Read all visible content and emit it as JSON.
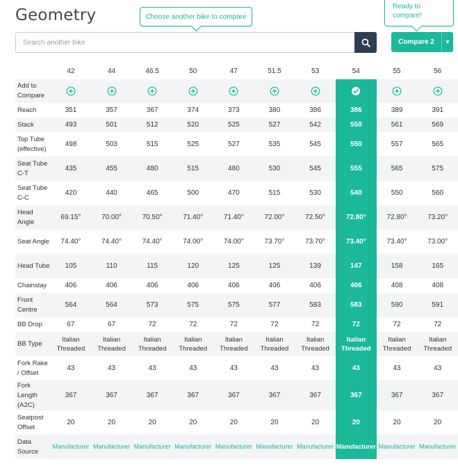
{
  "title": "Geometry",
  "tooltips": {
    "compare_hint": "Choose another bike to compare",
    "ready_line1": "Ready to",
    "ready_line2": "compare!"
  },
  "search": {
    "placeholder": "Search another bike",
    "icon": "search-icon"
  },
  "compare_button": {
    "label": "Compare 2",
    "icon": "chevron-down-icon"
  },
  "colors": {
    "accent": "#1bb89a",
    "dark": "#2c3e50",
    "row_alt": "#f3f4f6"
  },
  "table": {
    "sizes": [
      "42",
      "44",
      "46.5",
      "50",
      "47",
      "51.5",
      "53",
      "54",
      "55",
      "56"
    ],
    "selected_index": 7,
    "add_label": "Add to Compare",
    "rows": [
      {
        "label": "Reach",
        "values": [
          "351",
          "357",
          "367",
          "374",
          "373",
          "380",
          "386",
          "386",
          "389",
          "391"
        ]
      },
      {
        "label": "Stack",
        "values": [
          "493",
          "501",
          "512",
          "520",
          "525",
          "527",
          "542",
          "550",
          "561",
          "569"
        ]
      },
      {
        "label": "Top Tube (effective)",
        "values": [
          "498",
          "503",
          "515",
          "525",
          "527",
          "535",
          "545",
          "550",
          "557",
          "565"
        ]
      },
      {
        "label": "Seat Tube C-T",
        "values": [
          "435",
          "455",
          "480",
          "515",
          "480",
          "530",
          "545",
          "555",
          "565",
          "575"
        ]
      },
      {
        "label": "Seat Tube C-C",
        "values": [
          "420",
          "440",
          "465",
          "500",
          "470",
          "515",
          "530",
          "540",
          "550",
          "560"
        ]
      },
      {
        "label": "Head Angle",
        "values": [
          "69.15°",
          "70.00°",
          "70.50°",
          "71.40°",
          "71.40°",
          "72.00°",
          "72.50°",
          "72.80°",
          "72.80°",
          "73.20°"
        ]
      },
      {
        "label": "Seat Angle",
        "values": [
          "74.40°",
          "74.40°",
          "74.40°",
          "74.00°",
          "74.00°",
          "73.70°",
          "73.70°",
          "73.40°",
          "73.40°",
          "73.00°"
        ]
      },
      {
        "label": "Head Tube",
        "values": [
          "105",
          "110",
          "115",
          "120",
          "125",
          "125",
          "139",
          "147",
          "158",
          "165"
        ]
      },
      {
        "label": "Chainstay",
        "values": [
          "406",
          "406",
          "406",
          "406",
          "406",
          "406",
          "406",
          "406",
          "408",
          "408"
        ]
      },
      {
        "label": "Front Centre",
        "values": [
          "564",
          "564",
          "573",
          "575",
          "575",
          "577",
          "583",
          "583",
          "590",
          "591"
        ]
      },
      {
        "label": "BB Drop",
        "values": [
          "67",
          "67",
          "72",
          "72",
          "72",
          "72",
          "72",
          "72",
          "72",
          "72"
        ]
      },
      {
        "label": "BB Type",
        "values": [
          "Italian Threaded",
          "Italian Threaded",
          "Italian Threaded",
          "Italian Threaded",
          "Italian Threaded",
          "Italian Threaded",
          "Italian Threaded",
          "Italian Threaded",
          "Italian Threaded",
          "Italian Threaded"
        ]
      },
      {
        "label": "Fork Rake / Offset",
        "values": [
          "43",
          "43",
          "43",
          "43",
          "43",
          "43",
          "43",
          "43",
          "43",
          "43"
        ]
      },
      {
        "label": "Fork Length (A2C)",
        "values": [
          "367",
          "367",
          "367",
          "367",
          "367",
          "367",
          "367",
          "367",
          "367",
          "367"
        ]
      },
      {
        "label": "Seatpost Offset",
        "values": [
          "20",
          "20",
          "20",
          "20",
          "20",
          "20",
          "20",
          "20",
          "20",
          "20"
        ]
      },
      {
        "label": "Data Source",
        "values": [
          "Manufacturer",
          "Manufacturer",
          "Manufacturer",
          "Manufacturer",
          "Manufacturer",
          "Manufacturer",
          "Manufacturer",
          "Manufacturer",
          "Manufacturer",
          "Manufacturer"
        ]
      }
    ]
  }
}
